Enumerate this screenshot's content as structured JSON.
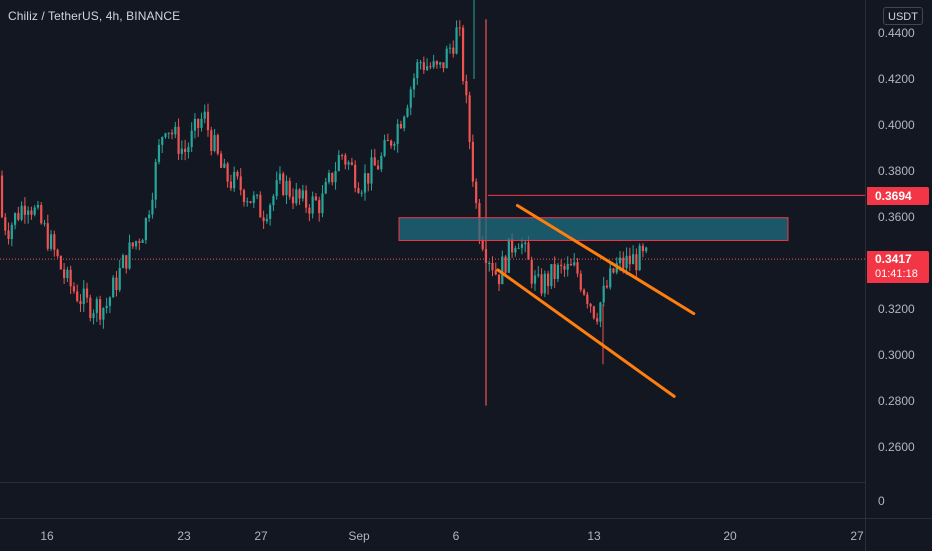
{
  "legend": {
    "symbol": "Chiliz / TetherUS",
    "interval": "4h",
    "exchange": "BINANCE",
    "separator": ", "
  },
  "price_axis": {
    "currency": "USDT",
    "ticks": [
      "0.4400",
      "0.4200",
      "0.4000",
      "0.3800",
      "0.3600",
      "0.3400",
      "0.3200",
      "0.3000",
      "0.2800",
      "0.2600"
    ],
    "resistance_label": "0.3694",
    "last_price": "0.3417",
    "countdown": "01:41:18"
  },
  "volume_axis": {
    "zero_label": "0"
  },
  "time_axis": {
    "ticks": [
      "16",
      "23",
      "27",
      "Sep",
      "6",
      "13",
      "20",
      "27"
    ]
  },
  "colors": {
    "background": "#131722",
    "up": "#26a69a",
    "down": "#ef5350",
    "zone_fill": "#1e6f82",
    "zone_border": "#f23645",
    "channel": "#ff7f0e",
    "axis_label": "#f23645"
  },
  "chart_data": {
    "type": "candlestick",
    "symbol": "CHZUSDT",
    "interval": "4h",
    "ylim": [
      0.25,
      0.455
    ],
    "key_levels": {
      "resistance_line": 0.3694,
      "demand_zone": [
        0.3498,
        0.3597
      ],
      "last_price": 0.3417
    },
    "channel": {
      "upper": {
        "from": [
          "Sep 9",
          0.365
        ],
        "to": [
          "Sep 18",
          0.318
        ]
      },
      "lower": {
        "from": [
          "Sep 8",
          0.337
        ],
        "to": [
          "Sep 17",
          0.282
        ]
      }
    },
    "price_path": [
      [
        "Aug 12",
        0.378
      ],
      [
        "Aug 13",
        0.372
      ],
      [
        "Aug 14",
        0.355
      ],
      [
        "Aug 15",
        0.368
      ],
      [
        "Aug 16",
        0.352
      ],
      [
        "Aug 17",
        0.332
      ],
      [
        "Aug 18",
        0.322
      ],
      [
        "Aug 19",
        0.321
      ],
      [
        "Aug 20",
        0.342
      ],
      [
        "Aug 21",
        0.356
      ],
      [
        "Aug 22",
        0.402
      ],
      [
        "Aug 23",
        0.388
      ],
      [
        "Aug 24",
        0.404
      ],
      [
        "Aug 25",
        0.378
      ],
      [
        "Aug 26",
        0.372
      ],
      [
        "Aug 27",
        0.362
      ],
      [
        "Aug 28",
        0.375
      ],
      [
        "Aug 29",
        0.366
      ],
      [
        "Aug 30",
        0.366
      ],
      [
        "Aug 31",
        0.388
      ],
      [
        "Sep 1",
        0.375
      ],
      [
        "Sep 2",
        0.384
      ],
      [
        "Sep 3",
        0.402
      ],
      [
        "Sep 4",
        0.428
      ],
      [
        "Sep 5",
        0.423
      ],
      [
        "Sep 6",
        0.442
      ],
      [
        "Sep 7",
        0.356
      ],
      [
        "Sep 8",
        0.334
      ],
      [
        "Sep 9",
        0.353
      ],
      [
        "Sep 10",
        0.329
      ],
      [
        "Sep 11",
        0.336
      ],
      [
        "Sep 12",
        0.337
      ],
      [
        "Sep 13",
        0.318
      ],
      [
        "Sep 14",
        0.338
      ],
      [
        "Sep 15",
        0.3417
      ]
    ]
  }
}
